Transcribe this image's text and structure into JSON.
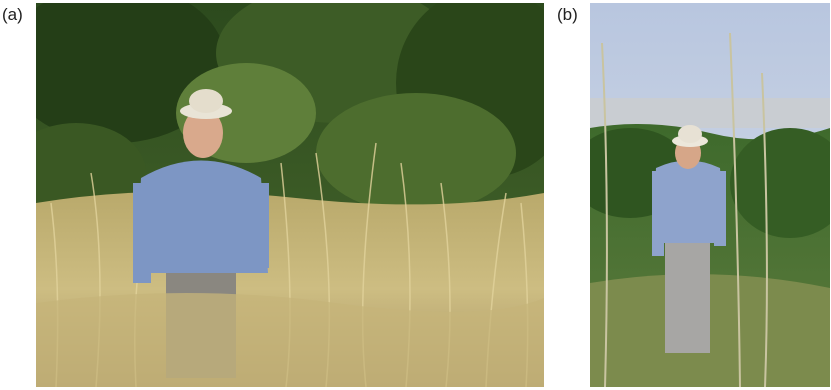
{
  "figure": {
    "panels": [
      {
        "label": "(a)",
        "scene": "man-in-tall-wild-grass"
      },
      {
        "label": "(b)",
        "scene": "man-on-hillside-with-tall-stalks"
      }
    ]
  }
}
